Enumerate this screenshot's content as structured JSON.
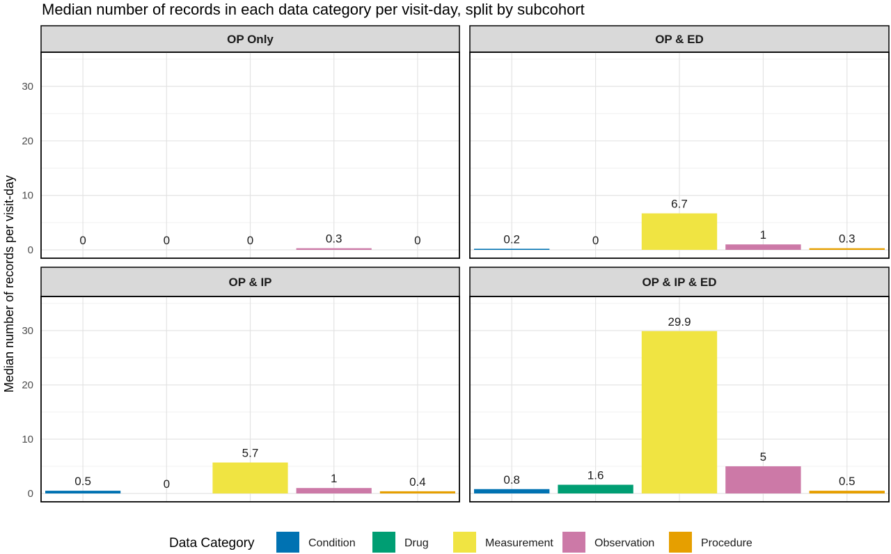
{
  "chart_data": {
    "type": "bar",
    "title": "Median number of records in each data category per visit-day, split by subcohort",
    "ylabel": "Median number of records per visit-day",
    "xlabel": "",
    "ylim": [
      0,
      35
    ],
    "yticks": [
      0,
      10,
      20,
      30
    ],
    "grid": true,
    "categories": [
      "Condition",
      "Drug",
      "Measurement",
      "Observation",
      "Procedure"
    ],
    "colors": {
      "Condition": "#0072B2",
      "Drug": "#009E73",
      "Measurement": "#F0E442",
      "Observation": "#CC79A7",
      "Procedure": "#E69F00"
    },
    "legend": {
      "title": "Data Category",
      "position": "bottom"
    },
    "panels": [
      {
        "name": "OP Only",
        "values": [
          0,
          0,
          0,
          0.3,
          0
        ],
        "labels": [
          "0",
          "0",
          "0",
          "0.3",
          "0"
        ]
      },
      {
        "name": "OP & ED",
        "values": [
          0.2,
          0,
          6.7,
          1,
          0.3
        ],
        "labels": [
          "0.2",
          "0",
          "6.7",
          "1",
          "0.3"
        ]
      },
      {
        "name": "OP & IP",
        "values": [
          0.5,
          0,
          5.7,
          1,
          0.4
        ],
        "labels": [
          "0.5",
          "0",
          "5.7",
          "1",
          "0.4"
        ]
      },
      {
        "name": "OP & IP & ED",
        "values": [
          0.8,
          1.6,
          29.9,
          5,
          0.5
        ],
        "labels": [
          "0.8",
          "1.6",
          "29.9",
          "5",
          "0.5"
        ]
      }
    ]
  }
}
